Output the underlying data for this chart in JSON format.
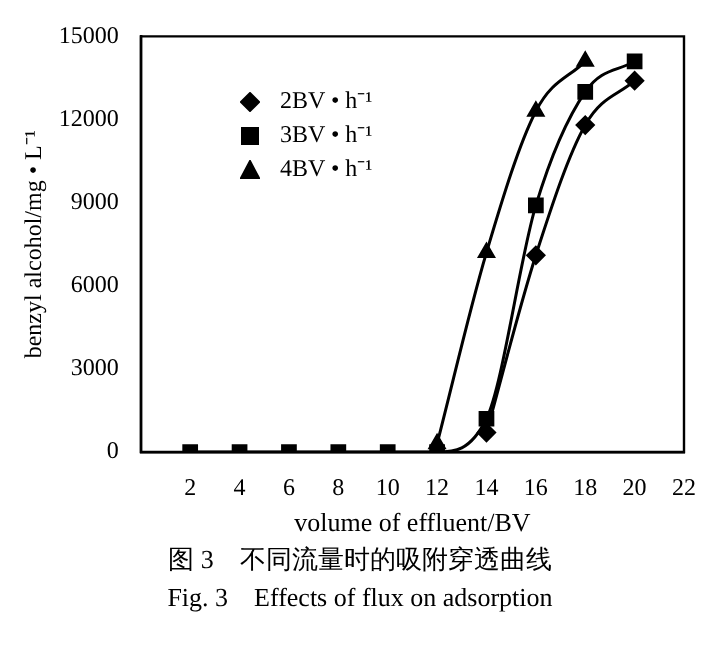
{
  "chart_data": {
    "type": "line",
    "xlabel": "volume of effluent/BV",
    "ylabel": "benzyl alcohol/mg • L⁻¹",
    "annotations": [
      "图 3　不同流量时的吸附穿透曲线",
      "Fig. 3　Effects of flux on adsorption"
    ],
    "x": [
      2,
      4,
      6,
      8,
      10,
      12,
      14,
      16,
      18,
      20
    ],
    "xlim": [
      0,
      22
    ],
    "xticks": [
      2,
      4,
      6,
      8,
      10,
      12,
      14,
      16,
      18,
      20,
      22
    ],
    "ylim": [
      0,
      15000
    ],
    "yticks": [
      0,
      3000,
      6000,
      9000,
      12000,
      15000
    ],
    "grid": false,
    "legend": "top left",
    "series": [
      {
        "name": "2BV • h⁻¹",
        "color": "#000000",
        "marker": "diamond",
        "values": [
          null,
          null,
          null,
          null,
          null,
          null,
          700,
          7100,
          11800,
          13400
        ]
      },
      {
        "name": "3BV • h⁻¹",
        "color": "#000000",
        "marker": "square",
        "values": [
          0,
          0,
          0,
          0,
          0,
          0,
          1200,
          8900,
          13000,
          14100
        ]
      },
      {
        "name": "4BV • h⁻¹",
        "color": "#000000",
        "marker": "triangle",
        "values": [
          null,
          null,
          null,
          null,
          null,
          300,
          7200,
          12300,
          14100,
          null
        ]
      }
    ]
  }
}
